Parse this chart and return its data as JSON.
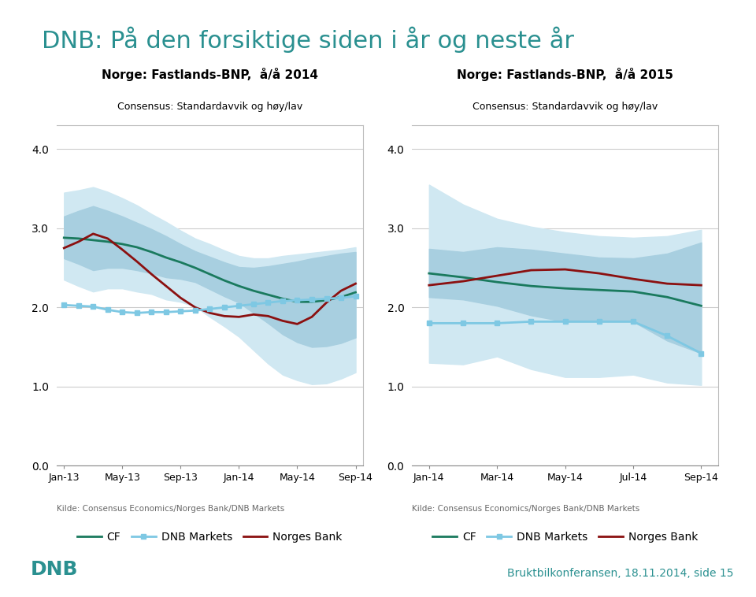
{
  "title": "DNB: På den forsiktige siden i år og neste år",
  "title_color": "#2a9090",
  "title_fontsize": 22,
  "footer_left": "DNB",
  "footer_right": "Bruktbilkonferansen, 18.11.2014, side 15",
  "footer_color": "#2a9090",
  "chart1": {
    "title": "Norge: Fastlands-BNP,  å/å 2014",
    "subtitle": "Consensus: Standardavvik og høy/lav",
    "ylim": [
      0.0,
      4.3
    ],
    "yticks": [
      0.0,
      1.0,
      2.0,
      3.0,
      4.0
    ],
    "x_labels": [
      "Jan-13",
      "May-13",
      "Sep-13",
      "Jan-14",
      "May-14",
      "Sep-14"
    ],
    "x_positions": [
      0,
      4,
      8,
      12,
      16,
      20
    ],
    "n_points": 21,
    "cf_line": [
      2.88,
      2.87,
      2.85,
      2.83,
      2.8,
      2.76,
      2.7,
      2.63,
      2.57,
      2.5,
      2.42,
      2.34,
      2.27,
      2.21,
      2.16,
      2.11,
      2.07,
      2.07,
      2.09,
      2.13,
      2.19
    ],
    "dnb_line": [
      2.03,
      2.02,
      2.01,
      1.97,
      1.94,
      1.93,
      1.94,
      1.94,
      1.95,
      1.96,
      1.98,
      2.0,
      2.02,
      2.04,
      2.06,
      2.08,
      2.09,
      2.1,
      2.11,
      2.12,
      2.14
    ],
    "norgesbank_line": [
      2.75,
      2.83,
      2.93,
      2.87,
      2.73,
      2.58,
      2.42,
      2.27,
      2.12,
      2.0,
      1.93,
      1.89,
      1.88,
      1.91,
      1.89,
      1.83,
      1.79,
      1.88,
      2.06,
      2.21,
      2.3
    ],
    "std_upper": [
      3.15,
      3.22,
      3.28,
      3.22,
      3.15,
      3.07,
      2.99,
      2.9,
      2.8,
      2.71,
      2.64,
      2.57,
      2.51,
      2.5,
      2.52,
      2.55,
      2.58,
      2.62,
      2.65,
      2.68,
      2.7
    ],
    "std_lower": [
      2.62,
      2.55,
      2.47,
      2.5,
      2.5,
      2.47,
      2.43,
      2.38,
      2.36,
      2.32,
      2.23,
      2.14,
      2.06,
      1.93,
      1.8,
      1.66,
      1.56,
      1.5,
      1.51,
      1.55,
      1.62
    ],
    "high_upper": [
      3.45,
      3.48,
      3.52,
      3.46,
      3.38,
      3.29,
      3.18,
      3.08,
      2.97,
      2.87,
      2.8,
      2.72,
      2.65,
      2.62,
      2.62,
      2.65,
      2.67,
      2.69,
      2.71,
      2.73,
      2.76
    ],
    "high_lower": [
      2.35,
      2.27,
      2.2,
      2.24,
      2.24,
      2.2,
      2.17,
      2.1,
      2.07,
      2.01,
      1.88,
      1.76,
      1.63,
      1.46,
      1.29,
      1.15,
      1.08,
      1.03,
      1.04,
      1.1,
      1.18
    ]
  },
  "chart2": {
    "title": "Norge: Fastlands-BNP,  å/å 2015",
    "subtitle": "Consensus: Standardavvik og høy/lav",
    "ylim": [
      0.0,
      4.3
    ],
    "yticks": [
      0.0,
      1.0,
      2.0,
      3.0,
      4.0
    ],
    "x_labels": [
      "Jan-14",
      "Mar-14",
      "May-14",
      "Jul-14",
      "Sep-14"
    ],
    "x_positions": [
      0,
      2,
      4,
      6,
      8
    ],
    "n_points": 9,
    "cf_line": [
      2.43,
      2.38,
      2.32,
      2.27,
      2.24,
      2.22,
      2.2,
      2.13,
      2.02
    ],
    "dnb_line": [
      1.8,
      1.8,
      1.8,
      1.82,
      1.82,
      1.82,
      1.82,
      1.64,
      1.42
    ],
    "norgesbank_line": [
      2.28,
      2.33,
      2.4,
      2.47,
      2.48,
      2.43,
      2.36,
      2.3,
      2.28
    ],
    "std_upper": [
      2.74,
      2.7,
      2.76,
      2.73,
      2.68,
      2.63,
      2.62,
      2.68,
      2.82
    ],
    "std_lower": [
      2.13,
      2.1,
      2.02,
      1.9,
      1.82,
      1.82,
      1.82,
      1.58,
      1.42
    ],
    "high_upper": [
      3.55,
      3.3,
      3.12,
      3.02,
      2.95,
      2.9,
      2.88,
      2.9,
      2.98
    ],
    "high_lower": [
      1.3,
      1.28,
      1.38,
      1.22,
      1.12,
      1.12,
      1.15,
      1.05,
      1.02
    ]
  },
  "colors": {
    "cf": "#1a7a5e",
    "dnb": "#7ec8e3",
    "norgesbank": "#8b1010",
    "std_band": "#a8cfe0",
    "high_band": "#d0e8f2"
  },
  "legend": [
    "CF",
    "DNB Markets",
    "Norges Bank"
  ],
  "source_text": "Kilde: Consensus Economics/Norges Bank/DNB Markets"
}
